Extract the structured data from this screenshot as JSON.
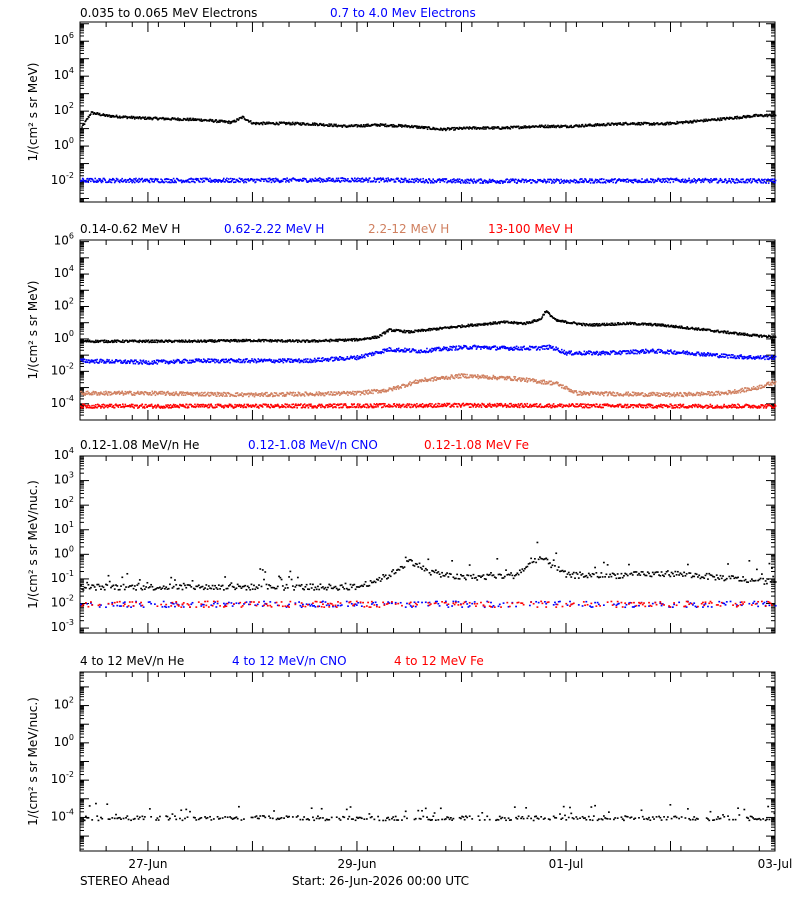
{
  "footer": {
    "spacecraft": "STEREO Ahead",
    "start": "Start: 26-Jun-2026 00:00 UTC"
  },
  "x_axis": {
    "ticks": [
      {
        "day": 1,
        "label": "27-Jun"
      },
      {
        "day": 3,
        "label": "29-Jun"
      },
      {
        "day": 5,
        "label": "01-Jul"
      },
      {
        "day": 7,
        "label": "03-Jul"
      }
    ],
    "range_days": [
      0.35,
      7
    ]
  },
  "chart_data": [
    {
      "type": "scatter",
      "panel": "electrons",
      "ylabel": "1/(cm² s sr MeV)",
      "y_scale": "log",
      "ylim_exp": [
        -3.2,
        7.1
      ],
      "yticks_exp": [
        -2,
        0,
        2,
        4,
        6
      ],
      "series": [
        {
          "name": "0.035 to 0.065 MeV Electrons",
          "color": "#000000",
          "points": [
            [
              0.35,
              10
            ],
            [
              0.45,
              90
            ],
            [
              0.6,
              60
            ],
            [
              0.9,
              45
            ],
            [
              1.2,
              40
            ],
            [
              1.5,
              35
            ],
            [
              1.8,
              25
            ],
            [
              1.9,
              50
            ],
            [
              2.0,
              22
            ],
            [
              2.3,
              22
            ],
            [
              2.6,
              20
            ],
            [
              2.9,
              15
            ],
            [
              3.2,
              18
            ],
            [
              3.5,
              15
            ],
            [
              3.8,
              10
            ],
            [
              4.1,
              12
            ],
            [
              4.4,
              12
            ],
            [
              4.7,
              15
            ],
            [
              5.0,
              15
            ],
            [
              5.3,
              18
            ],
            [
              5.6,
              22
            ],
            [
              5.9,
              20
            ],
            [
              6.2,
              28
            ],
            [
              6.5,
              40
            ],
            [
              6.8,
              60
            ],
            [
              7.0,
              65
            ]
          ]
        },
        {
          "name": "0.7 to 4.0 Mev Electrons",
          "color": "#0000ff",
          "points": [
            [
              0.35,
              0.012
            ],
            [
              1.0,
              0.012
            ],
            [
              2.0,
              0.012
            ],
            [
              3.0,
              0.013
            ],
            [
              4.0,
              0.011
            ],
            [
              5.0,
              0.011
            ],
            [
              6.0,
              0.012
            ],
            [
              7.0,
              0.011
            ]
          ]
        }
      ]
    },
    {
      "type": "scatter",
      "panel": "protons",
      "ylabel": "1/(cm² s sr MeV)",
      "y_scale": "log",
      "ylim_exp": [
        -5,
        6.1
      ],
      "yticks_exp": [
        -4,
        -2,
        0,
        2,
        4,
        6
      ],
      "series": [
        {
          "name": "0.14-0.62 MeV H",
          "color": "#000000",
          "points": [
            [
              0.35,
              0.8
            ],
            [
              1.0,
              0.8
            ],
            [
              1.5,
              0.8
            ],
            [
              2.0,
              0.9
            ],
            [
              2.5,
              0.8
            ],
            [
              3.0,
              1.0
            ],
            [
              3.2,
              1.5
            ],
            [
              3.3,
              4
            ],
            [
              3.5,
              3
            ],
            [
              3.8,
              5
            ],
            [
              4.1,
              8
            ],
            [
              4.4,
              12
            ],
            [
              4.6,
              10
            ],
            [
              4.75,
              18
            ],
            [
              4.8,
              60
            ],
            [
              4.9,
              15
            ],
            [
              5.2,
              8
            ],
            [
              5.6,
              10
            ],
            [
              5.9,
              8
            ],
            [
              6.2,
              5
            ],
            [
              6.5,
              3
            ],
            [
              6.8,
              1.8
            ],
            [
              7.0,
              1.5
            ]
          ]
        },
        {
          "name": "0.62-2.22 MeV H",
          "color": "#0000ff",
          "points": [
            [
              0.35,
              0.05
            ],
            [
              1.0,
              0.04
            ],
            [
              1.5,
              0.05
            ],
            [
              2.0,
              0.05
            ],
            [
              2.5,
              0.05
            ],
            [
              3.0,
              0.08
            ],
            [
              3.3,
              0.25
            ],
            [
              3.6,
              0.2
            ],
            [
              3.9,
              0.3
            ],
            [
              4.1,
              0.35
            ],
            [
              4.4,
              0.3
            ],
            [
              4.7,
              0.3
            ],
            [
              4.85,
              0.35
            ],
            [
              5.0,
              0.15
            ],
            [
              5.4,
              0.15
            ],
            [
              5.8,
              0.2
            ],
            [
              6.2,
              0.15
            ],
            [
              6.5,
              0.1
            ],
            [
              6.8,
              0.08
            ],
            [
              7.0,
              0.08
            ]
          ]
        },
        {
          "name": "2.2-12 MeV H",
          "color": "#d08060",
          "points": [
            [
              0.35,
              0.0005
            ],
            [
              1.0,
              0.0005
            ],
            [
              2.0,
              0.0004
            ],
            [
              3.0,
              0.0005
            ],
            [
              3.3,
              0.0008
            ],
            [
              3.6,
              0.003
            ],
            [
              4.0,
              0.006
            ],
            [
              4.5,
              0.004
            ],
            [
              4.9,
              0.002
            ],
            [
              5.1,
              0.0005
            ],
            [
              6.0,
              0.0004
            ],
            [
              6.5,
              0.0005
            ],
            [
              6.8,
              0.001
            ],
            [
              7.0,
              0.0025
            ]
          ]
        },
        {
          "name": "13-100 MeV H",
          "color": "#ff0000",
          "points": [
            [
              0.35,
              8e-05
            ],
            [
              2.0,
              8e-05
            ],
            [
              4.0,
              9e-05
            ],
            [
              6.0,
              8e-05
            ],
            [
              7.0,
              8e-05
            ]
          ]
        }
      ]
    },
    {
      "type": "scatter",
      "panel": "low-energy-heavy-ions",
      "ylabel": "1/(cm² s sr MeV/nuc.)",
      "y_scale": "log",
      "ylim_exp": [
        -3.2,
        4
      ],
      "yticks_exp": [
        -3,
        -2,
        -1,
        0,
        1,
        2,
        3,
        4
      ],
      "series": [
        {
          "name": "0.12-1.08 MeV/n He",
          "color": "#000000",
          "points": [
            [
              0.35,
              0.05
            ],
            [
              2.0,
              0.05
            ],
            [
              3.0,
              0.05
            ],
            [
              3.3,
              0.15
            ],
            [
              3.5,
              0.6
            ],
            [
              3.7,
              0.2
            ],
            [
              4.0,
              0.12
            ],
            [
              4.5,
              0.15
            ],
            [
              4.75,
              0.8
            ],
            [
              5.0,
              0.15
            ],
            [
              5.5,
              0.15
            ],
            [
              6.0,
              0.18
            ],
            [
              6.5,
              0.12
            ],
            [
              7.0,
              0.08
            ]
          ]
        },
        {
          "name": "0.12-1.08 MeV/n CNO",
          "color": "#0000ff",
          "points": [
            [
              0.35,
              0.01
            ],
            [
              7.0,
              0.01
            ]
          ]
        },
        {
          "name": "0.12-1.08 MeV Fe",
          "color": "#ff0000",
          "points": [
            [
              0.35,
              0.01
            ],
            [
              7.0,
              0.01
            ]
          ]
        }
      ]
    },
    {
      "type": "scatter",
      "panel": "high-energy-heavy-ions",
      "ylabel": "1/(cm² s sr MeV/nuc.)",
      "y_scale": "log",
      "ylim_exp": [
        -5.8,
        3.8
      ],
      "yticks_exp": [
        -4,
        -2,
        0,
        2
      ],
      "series": [
        {
          "name": "4 to 12 MeV/n He",
          "color": "#000000",
          "points": [
            [
              0.35,
              0.0001
            ],
            [
              7.0,
              0.0001
            ]
          ]
        },
        {
          "name": "4 to 12 MeV/n CNO",
          "color": "#0000ff",
          "points": []
        },
        {
          "name": "4 to 12 MeV Fe",
          "color": "#ff0000",
          "points": []
        }
      ]
    }
  ]
}
